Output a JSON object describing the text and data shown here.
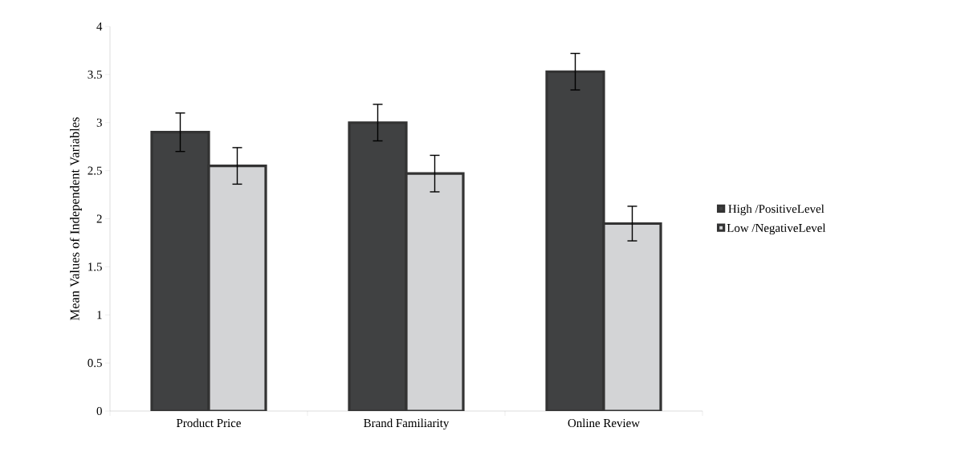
{
  "chart_data": {
    "type": "bar",
    "ylabel": "Mean Values of Independent Variables",
    "categories": [
      "Product Price",
      "Brand Familiarity",
      "Online Review"
    ],
    "series": [
      {
        "name": "High /PositiveLevel",
        "color": "#404142",
        "values": [
          2.9,
          3.0,
          3.53
        ],
        "errors": [
          0.2,
          0.19,
          0.19
        ]
      },
      {
        "name": "Low /NegativeLevel",
        "color": "#d3d4d6",
        "values": [
          2.55,
          2.47,
          1.95
        ],
        "errors": [
          0.19,
          0.19,
          0.18
        ]
      }
    ],
    "ylim": [
      0,
      4
    ],
    "yticks": [
      0,
      0.5,
      1,
      1.5,
      2,
      2.5,
      3,
      3.5,
      4
    ],
    "grid": false,
    "legend": "right"
  }
}
